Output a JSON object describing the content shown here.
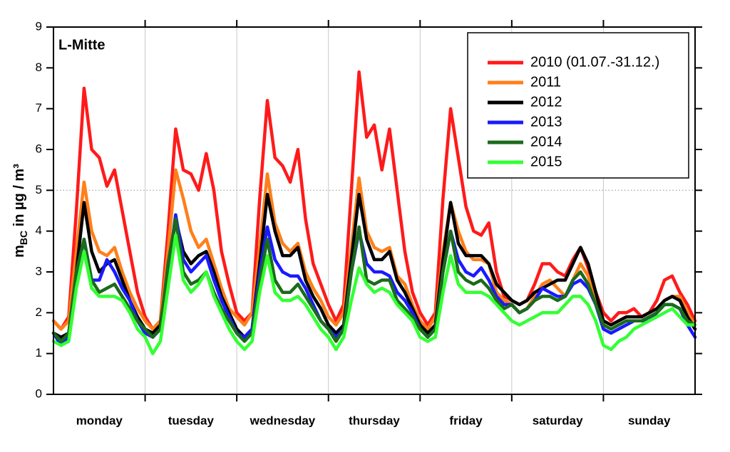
{
  "chart_data": {
    "type": "line",
    "title": "L-Mitte",
    "ylabel": {
      "main": "m",
      "sub": "BC",
      "rest": " in µg / m³"
    },
    "x": [
      0,
      2,
      4,
      6,
      8,
      10,
      12,
      14,
      16,
      18,
      20,
      22,
      24,
      26,
      28,
      30,
      32,
      34,
      36,
      38,
      40,
      42,
      44,
      46,
      48,
      50,
      52,
      54,
      56,
      58,
      60,
      62,
      64,
      66,
      68,
      70,
      72,
      74,
      76,
      78,
      80,
      82,
      84,
      86,
      88,
      90,
      92,
      94,
      96,
      98,
      100,
      102,
      104,
      106,
      108,
      110,
      112,
      114,
      116,
      118,
      120,
      122,
      124,
      126,
      128,
      130,
      132,
      134,
      136,
      138,
      140,
      142,
      144,
      146,
      148,
      150,
      152,
      154,
      156,
      158,
      160,
      162,
      164,
      166,
      168
    ],
    "xlim": [
      0,
      168
    ],
    "xticks": [
      {
        "value": 12,
        "label": "monday"
      },
      {
        "value": 36,
        "label": "tuesday"
      },
      {
        "value": 60,
        "label": "wednesday"
      },
      {
        "value": 84,
        "label": "thursday"
      },
      {
        "value": 108,
        "label": "friday"
      },
      {
        "value": 132,
        "label": "saturday"
      },
      {
        "value": 156,
        "label": "sunday"
      }
    ],
    "xgrid": [
      24,
      48,
      72,
      96,
      120,
      144
    ],
    "ylim": [
      0,
      9
    ],
    "yticks": [
      0,
      1,
      2,
      3,
      4,
      5,
      6,
      7,
      8,
      9
    ],
    "hline": 5,
    "legend": "upper right",
    "series": [
      {
        "name": "2010 (01.07.-31.12.)",
        "color": "#ff1a1a",
        "values": [
          1.8,
          1.6,
          1.9,
          4.5,
          7.5,
          6.0,
          5.8,
          5.1,
          5.5,
          4.5,
          3.5,
          2.5,
          1.9,
          1.6,
          1.8,
          4.0,
          6.5,
          5.5,
          5.4,
          5.0,
          5.9,
          5.0,
          3.5,
          2.7,
          2.0,
          1.8,
          2.0,
          4.8,
          7.2,
          5.8,
          5.6,
          5.2,
          6.0,
          4.3,
          3.2,
          2.7,
          2.2,
          1.8,
          2.2,
          5.0,
          7.9,
          6.3,
          6.6,
          5.5,
          6.5,
          5.0,
          3.5,
          2.5,
          2.0,
          1.7,
          2.0,
          4.8,
          7.0,
          5.8,
          4.6,
          4.0,
          3.9,
          4.2,
          3.0,
          2.4,
          2.3,
          2.2,
          2.3,
          2.7,
          3.2,
          3.2,
          3.0,
          2.9,
          3.3,
          3.6,
          3.1,
          2.5,
          2.0,
          1.8,
          2.0,
          2.0,
          2.1,
          1.9,
          2.0,
          2.3,
          2.8,
          2.9,
          2.5,
          2.2,
          1.8
        ]
      },
      {
        "name": "2011",
        "color": "#ff7f1a",
        "values": [
          1.8,
          1.6,
          1.8,
          3.5,
          5.2,
          4.0,
          3.5,
          3.4,
          3.6,
          3.0,
          2.5,
          2.1,
          1.8,
          1.6,
          1.8,
          3.5,
          5.5,
          4.8,
          4.0,
          3.6,
          3.8,
          3.2,
          2.6,
          2.1,
          1.9,
          1.7,
          2.0,
          3.6,
          5.4,
          4.2,
          3.7,
          3.5,
          3.7,
          3.0,
          2.6,
          2.3,
          1.9,
          1.7,
          2.0,
          3.6,
          5.3,
          4.0,
          3.6,
          3.5,
          3.6,
          2.9,
          2.7,
          2.2,
          1.8,
          1.6,
          1.9,
          3.5,
          4.7,
          4.0,
          3.5,
          3.3,
          3.3,
          3.2,
          2.5,
          2.3,
          2.2,
          2.0,
          2.1,
          2.4,
          2.7,
          2.8,
          2.6,
          2.4,
          2.8,
          3.2,
          2.9,
          2.3,
          1.8,
          1.7,
          1.8,
          1.9,
          1.9,
          1.9,
          2.0,
          2.1,
          2.3,
          2.4,
          2.4,
          2.0,
          1.7
        ]
      },
      {
        "name": "2012",
        "color": "#000000",
        "values": [
          1.5,
          1.4,
          1.5,
          3.0,
          4.7,
          3.5,
          3.0,
          3.2,
          3.3,
          2.8,
          2.3,
          1.9,
          1.6,
          1.5,
          1.7,
          3.0,
          4.3,
          3.5,
          3.2,
          3.4,
          3.5,
          3.0,
          2.4,
          2.0,
          1.6,
          1.4,
          1.6,
          3.2,
          4.9,
          4.0,
          3.4,
          3.4,
          3.6,
          2.8,
          2.4,
          2.1,
          1.7,
          1.5,
          1.7,
          3.3,
          4.9,
          3.8,
          3.3,
          3.3,
          3.5,
          2.8,
          2.5,
          2.1,
          1.7,
          1.5,
          1.7,
          3.3,
          4.7,
          3.7,
          3.4,
          3.4,
          3.4,
          3.2,
          2.7,
          2.5,
          2.3,
          2.2,
          2.3,
          2.5,
          2.6,
          2.7,
          2.8,
          2.8,
          3.2,
          3.6,
          3.2,
          2.5,
          1.8,
          1.7,
          1.8,
          1.9,
          1.9,
          1.9,
          2.0,
          2.1,
          2.3,
          2.4,
          2.3,
          1.9,
          1.6
        ]
      },
      {
        "name": "2013",
        "color": "#1a1aff",
        "values": [
          1.5,
          1.2,
          1.4,
          2.8,
          3.8,
          2.8,
          2.8,
          3.3,
          3.0,
          2.6,
          2.3,
          1.8,
          1.5,
          1.4,
          1.6,
          3.0,
          4.4,
          3.3,
          3.0,
          3.2,
          3.4,
          2.8,
          2.3,
          1.9,
          1.5,
          1.4,
          1.6,
          3.0,
          4.1,
          3.3,
          3.0,
          2.9,
          2.9,
          2.6,
          2.2,
          1.8,
          1.6,
          1.4,
          1.6,
          3.0,
          4.0,
          3.2,
          3.0,
          3.0,
          2.9,
          2.5,
          2.3,
          2.0,
          1.6,
          1.4,
          1.6,
          3.0,
          4.0,
          3.3,
          3.0,
          2.9,
          3.1,
          2.8,
          2.4,
          2.2,
          2.2,
          2.0,
          2.1,
          2.3,
          2.6,
          2.5,
          2.4,
          2.4,
          2.7,
          2.8,
          2.6,
          2.2,
          1.6,
          1.5,
          1.6,
          1.7,
          1.8,
          1.8,
          1.8,
          2.0,
          2.2,
          2.2,
          2.1,
          1.7,
          1.4
        ]
      },
      {
        "name": "2014",
        "color": "#1a6b1a",
        "values": [
          1.5,
          1.3,
          1.5,
          3.0,
          3.8,
          2.8,
          2.5,
          2.6,
          2.7,
          2.4,
          2.1,
          1.8,
          1.6,
          1.4,
          1.6,
          3.2,
          4.3,
          3.0,
          2.7,
          2.8,
          3.0,
          2.5,
          2.1,
          1.8,
          1.5,
          1.3,
          1.5,
          2.8,
          3.8,
          2.8,
          2.5,
          2.5,
          2.7,
          2.4,
          2.1,
          1.8,
          1.6,
          1.3,
          1.6,
          3.0,
          4.1,
          2.8,
          2.7,
          2.8,
          2.8,
          2.3,
          2.1,
          1.9,
          1.6,
          1.4,
          1.6,
          3.0,
          4.0,
          3.0,
          2.8,
          2.7,
          2.8,
          2.6,
          2.3,
          2.1,
          2.2,
          2.0,
          2.1,
          2.3,
          2.4,
          2.4,
          2.3,
          2.4,
          2.8,
          3.0,
          2.7,
          2.2,
          1.7,
          1.6,
          1.7,
          1.8,
          1.8,
          1.8,
          1.9,
          2.0,
          2.2,
          2.2,
          2.1,
          1.8,
          1.7
        ]
      },
      {
        "name": "2015",
        "color": "#33ff33",
        "values": [
          1.3,
          1.2,
          1.3,
          2.6,
          3.5,
          2.6,
          2.4,
          2.4,
          2.4,
          2.3,
          2.0,
          1.6,
          1.4,
          1.0,
          1.3,
          2.6,
          3.9,
          2.8,
          2.5,
          2.7,
          3.0,
          2.4,
          2.0,
          1.6,
          1.3,
          1.1,
          1.3,
          2.5,
          3.4,
          2.5,
          2.3,
          2.3,
          2.4,
          2.2,
          1.9,
          1.6,
          1.4,
          1.1,
          1.4,
          2.3,
          3.1,
          2.7,
          2.5,
          2.6,
          2.5,
          2.2,
          2.0,
          1.8,
          1.4,
          1.3,
          1.4,
          2.5,
          3.4,
          2.7,
          2.5,
          2.5,
          2.5,
          2.4,
          2.2,
          2.0,
          1.8,
          1.7,
          1.8,
          1.9,
          2.0,
          2.0,
          2.0,
          2.2,
          2.4,
          2.4,
          2.2,
          1.8,
          1.2,
          1.1,
          1.3,
          1.4,
          1.6,
          1.7,
          1.8,
          1.9,
          2.0,
          2.1,
          1.9,
          1.7,
          1.7
        ]
      }
    ]
  }
}
